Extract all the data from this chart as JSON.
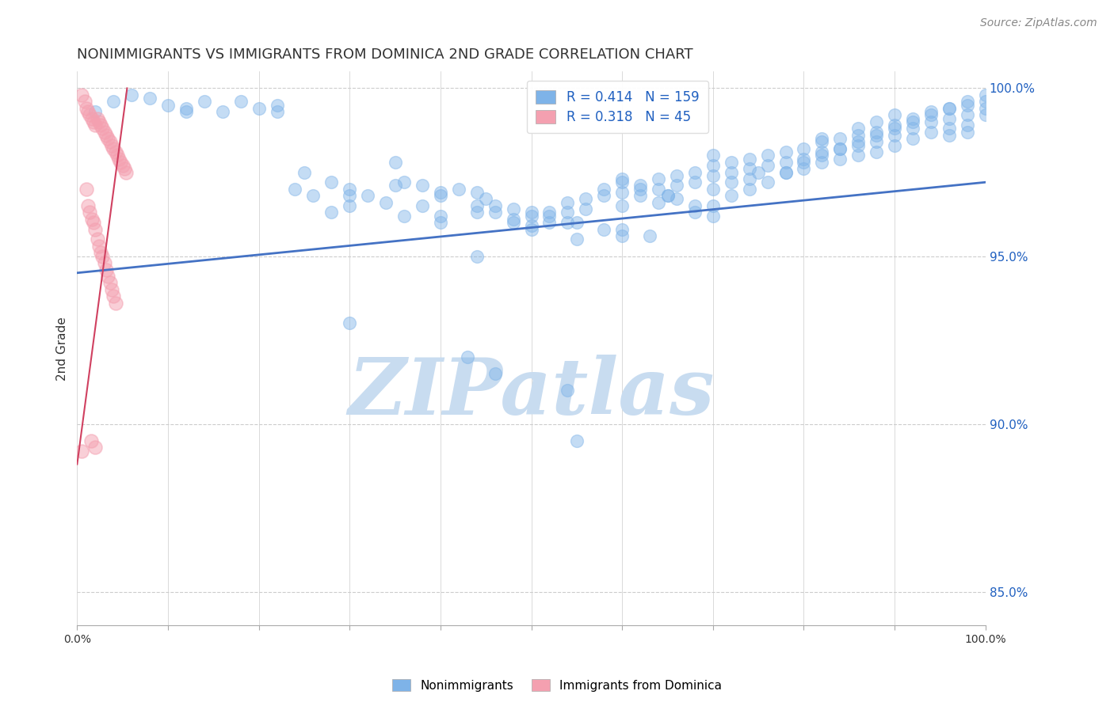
{
  "title": "NONIMMIGRANTS VS IMMIGRANTS FROM DOMINICA 2ND GRADE CORRELATION CHART",
  "source": "Source: ZipAtlas.com",
  "ylabel": "2nd Grade",
  "legend_labels": [
    "Nonimmigrants",
    "Immigrants from Dominica"
  ],
  "legend_R": [
    0.414,
    0.318
  ],
  "legend_N": [
    159,
    45
  ],
  "blue_color": "#7EB3E8",
  "pink_color": "#F4A0B0",
  "trend_blue": "#4472C4",
  "trend_pink": "#D04060",
  "watermark": "ZIPatlas",
  "watermark_color": "#C8DCF0",
  "xlim": [
    0.0,
    1.0
  ],
  "ylim": [
    0.84,
    1.005
  ],
  "yticks": [
    0.85,
    0.9,
    0.95,
    1.0
  ],
  "ytick_labels": [
    "85.0%",
    "90.0%",
    "95.0%",
    "100.0%"
  ],
  "xticks": [
    0.0,
    0.1,
    0.2,
    0.3,
    0.4,
    0.5,
    0.6,
    0.7,
    0.8,
    0.9,
    1.0
  ],
  "xtick_labels": [
    "0.0%",
    "",
    "",
    "",
    "",
    "",
    "",
    "",
    "",
    "",
    "100.0%"
  ],
  "grid_color": "#CCCCCC",
  "blue_scatter_x": [
    0.02,
    0.04,
    0.06,
    0.08,
    0.1,
    0.12,
    0.12,
    0.14,
    0.16,
    0.18,
    0.2,
    0.22,
    0.22,
    0.24,
    0.26,
    0.28,
    0.28,
    0.3,
    0.3,
    0.32,
    0.34,
    0.36,
    0.36,
    0.38,
    0.38,
    0.4,
    0.4,
    0.42,
    0.44,
    0.44,
    0.44,
    0.46,
    0.46,
    0.48,
    0.48,
    0.5,
    0.5,
    0.52,
    0.52,
    0.54,
    0.54,
    0.54,
    0.56,
    0.56,
    0.58,
    0.58,
    0.6,
    0.6,
    0.6,
    0.62,
    0.62,
    0.64,
    0.64,
    0.64,
    0.66,
    0.66,
    0.68,
    0.68,
    0.7,
    0.7,
    0.7,
    0.72,
    0.72,
    0.72,
    0.74,
    0.74,
    0.74,
    0.76,
    0.76,
    0.78,
    0.78,
    0.78,
    0.8,
    0.8,
    0.8,
    0.82,
    0.82,
    0.82,
    0.84,
    0.84,
    0.84,
    0.86,
    0.86,
    0.86,
    0.86,
    0.88,
    0.88,
    0.88,
    0.88,
    0.9,
    0.9,
    0.9,
    0.9,
    0.92,
    0.92,
    0.92,
    0.94,
    0.94,
    0.94,
    0.96,
    0.96,
    0.96,
    0.96,
    0.98,
    0.98,
    0.98,
    0.98,
    1.0,
    1.0,
    1.0,
    0.25,
    0.3,
    0.35,
    0.4,
    0.45,
    0.48,
    0.5,
    0.52,
    0.55,
    0.58,
    0.6,
    0.62,
    0.65,
    0.68,
    0.7,
    0.55,
    0.43,
    0.46,
    0.54,
    0.6,
    0.63,
    0.66,
    0.68,
    0.7,
    0.72,
    0.74,
    0.76,
    0.78,
    0.8,
    0.82,
    0.84,
    0.86,
    0.88,
    0.9,
    0.92,
    0.94,
    0.96,
    0.98,
    1.0,
    0.82,
    0.44,
    0.3,
    0.55,
    0.4,
    0.6,
    0.65,
    0.5,
    0.35,
    0.7,
    0.75
  ],
  "blue_scatter_y": [
    0.993,
    0.996,
    0.998,
    0.997,
    0.995,
    0.994,
    0.993,
    0.996,
    0.993,
    0.996,
    0.994,
    0.993,
    0.995,
    0.97,
    0.968,
    0.972,
    0.963,
    0.97,
    0.965,
    0.968,
    0.966,
    0.972,
    0.962,
    0.971,
    0.965,
    0.968,
    0.962,
    0.97,
    0.969,
    0.965,
    0.963,
    0.965,
    0.963,
    0.961,
    0.96,
    0.962,
    0.958,
    0.963,
    0.96,
    0.966,
    0.963,
    0.96,
    0.967,
    0.964,
    0.97,
    0.968,
    0.972,
    0.969,
    0.965,
    0.971,
    0.968,
    0.973,
    0.97,
    0.966,
    0.974,
    0.971,
    0.975,
    0.972,
    0.977,
    0.974,
    0.97,
    0.978,
    0.975,
    0.972,
    0.979,
    0.976,
    0.973,
    0.98,
    0.977,
    0.981,
    0.978,
    0.975,
    0.982,
    0.979,
    0.976,
    0.984,
    0.981,
    0.978,
    0.985,
    0.982,
    0.979,
    0.986,
    0.983,
    0.98,
    0.988,
    0.987,
    0.984,
    0.981,
    0.99,
    0.989,
    0.986,
    0.983,
    0.992,
    0.991,
    0.988,
    0.985,
    0.993,
    0.99,
    0.987,
    0.994,
    0.991,
    0.988,
    0.986,
    0.995,
    0.992,
    0.989,
    0.987,
    0.996,
    0.994,
    0.992,
    0.975,
    0.968,
    0.971,
    0.969,
    0.967,
    0.964,
    0.959,
    0.962,
    0.96,
    0.958,
    0.956,
    0.97,
    0.968,
    0.965,
    0.962,
    0.955,
    0.92,
    0.915,
    0.91,
    0.958,
    0.956,
    0.967,
    0.963,
    0.965,
    0.968,
    0.97,
    0.972,
    0.975,
    0.978,
    0.98,
    0.982,
    0.984,
    0.986,
    0.988,
    0.99,
    0.992,
    0.994,
    0.996,
    0.998,
    0.985,
    0.95,
    0.93,
    0.895,
    0.96,
    0.973,
    0.968,
    0.963,
    0.978,
    0.98,
    0.975
  ],
  "pink_scatter_x": [
    0.005,
    0.008,
    0.01,
    0.012,
    0.014,
    0.016,
    0.018,
    0.02,
    0.022,
    0.024,
    0.026,
    0.028,
    0.03,
    0.032,
    0.034,
    0.036,
    0.038,
    0.04,
    0.042,
    0.044,
    0.046,
    0.048,
    0.05,
    0.052,
    0.054,
    0.01,
    0.012,
    0.014,
    0.016,
    0.018,
    0.02,
    0.022,
    0.024,
    0.026,
    0.028,
    0.03,
    0.032,
    0.034,
    0.036,
    0.038,
    0.04,
    0.042,
    0.015,
    0.02,
    0.005
  ],
  "pink_scatter_y": [
    0.998,
    0.996,
    0.994,
    0.993,
    0.992,
    0.991,
    0.99,
    0.989,
    0.991,
    0.99,
    0.989,
    0.988,
    0.987,
    0.986,
    0.985,
    0.984,
    0.983,
    0.982,
    0.981,
    0.98,
    0.979,
    0.978,
    0.977,
    0.976,
    0.975,
    0.97,
    0.965,
    0.963,
    0.961,
    0.96,
    0.958,
    0.955,
    0.953,
    0.951,
    0.95,
    0.948,
    0.946,
    0.944,
    0.942,
    0.94,
    0.938,
    0.936,
    0.895,
    0.893,
    0.892
  ],
  "blue_trend_x": [
    0.0,
    1.0
  ],
  "blue_trend_y": [
    0.945,
    0.972
  ],
  "pink_trend_x": [
    0.0,
    0.055
  ],
  "pink_trend_y": [
    0.888,
    1.0
  ],
  "tick_color": "#2060C0",
  "title_color": "#333333",
  "title_fontsize": 13,
  "ylabel_fontsize": 11,
  "source_fontsize": 10,
  "legend_fontsize": 12
}
